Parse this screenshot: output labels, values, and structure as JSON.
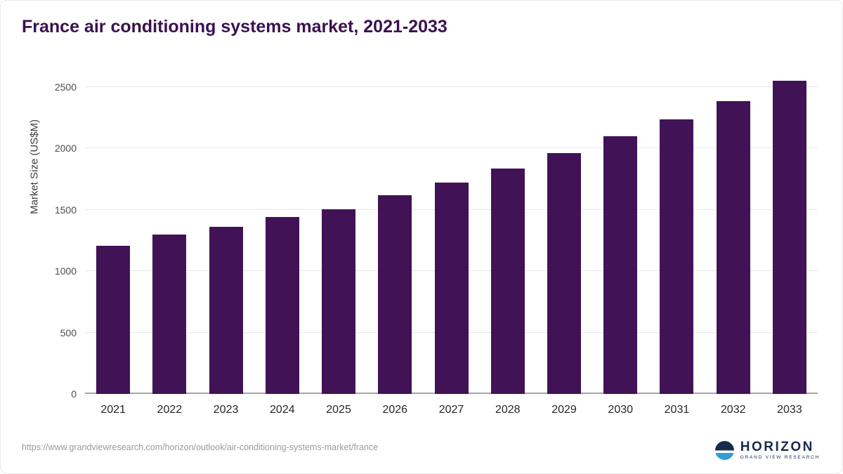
{
  "title": "France air conditioning systems market, 2021-2033",
  "chart_data": {
    "type": "bar",
    "title": "France air conditioning systems market, 2021-2033",
    "categories": [
      "2021",
      "2022",
      "2023",
      "2024",
      "2025",
      "2026",
      "2027",
      "2028",
      "2029",
      "2030",
      "2031",
      "2032",
      "2033"
    ],
    "values": [
      1205,
      1295,
      1360,
      1440,
      1505,
      1620,
      1720,
      1835,
      1960,
      2095,
      2235,
      2385,
      2550
    ],
    "xlabel": "",
    "ylabel": "Market Size (US$M)",
    "ylim": [
      0,
      2600
    ],
    "yticks": [
      0,
      500,
      1000,
      1500,
      2000,
      2500
    ],
    "grid": true,
    "legend": false,
    "bar_color": "#411356"
  },
  "footer": {
    "source_url": "https://www.grandviewresearch.com/horizon/outlook/air-conditioning-systems-market/france",
    "logo_title": "HORIZON",
    "logo_subtitle": "GRAND VIEW RESEARCH"
  },
  "colors": {
    "title": "#3a1150",
    "bar": "#411356",
    "grid": "#e7e7e7",
    "axis": "#a6a6a6",
    "ticks": "#4d4d4d",
    "source": "#9b9b9b",
    "navy": "#152c4e",
    "teal": "#2d9fd6"
  }
}
